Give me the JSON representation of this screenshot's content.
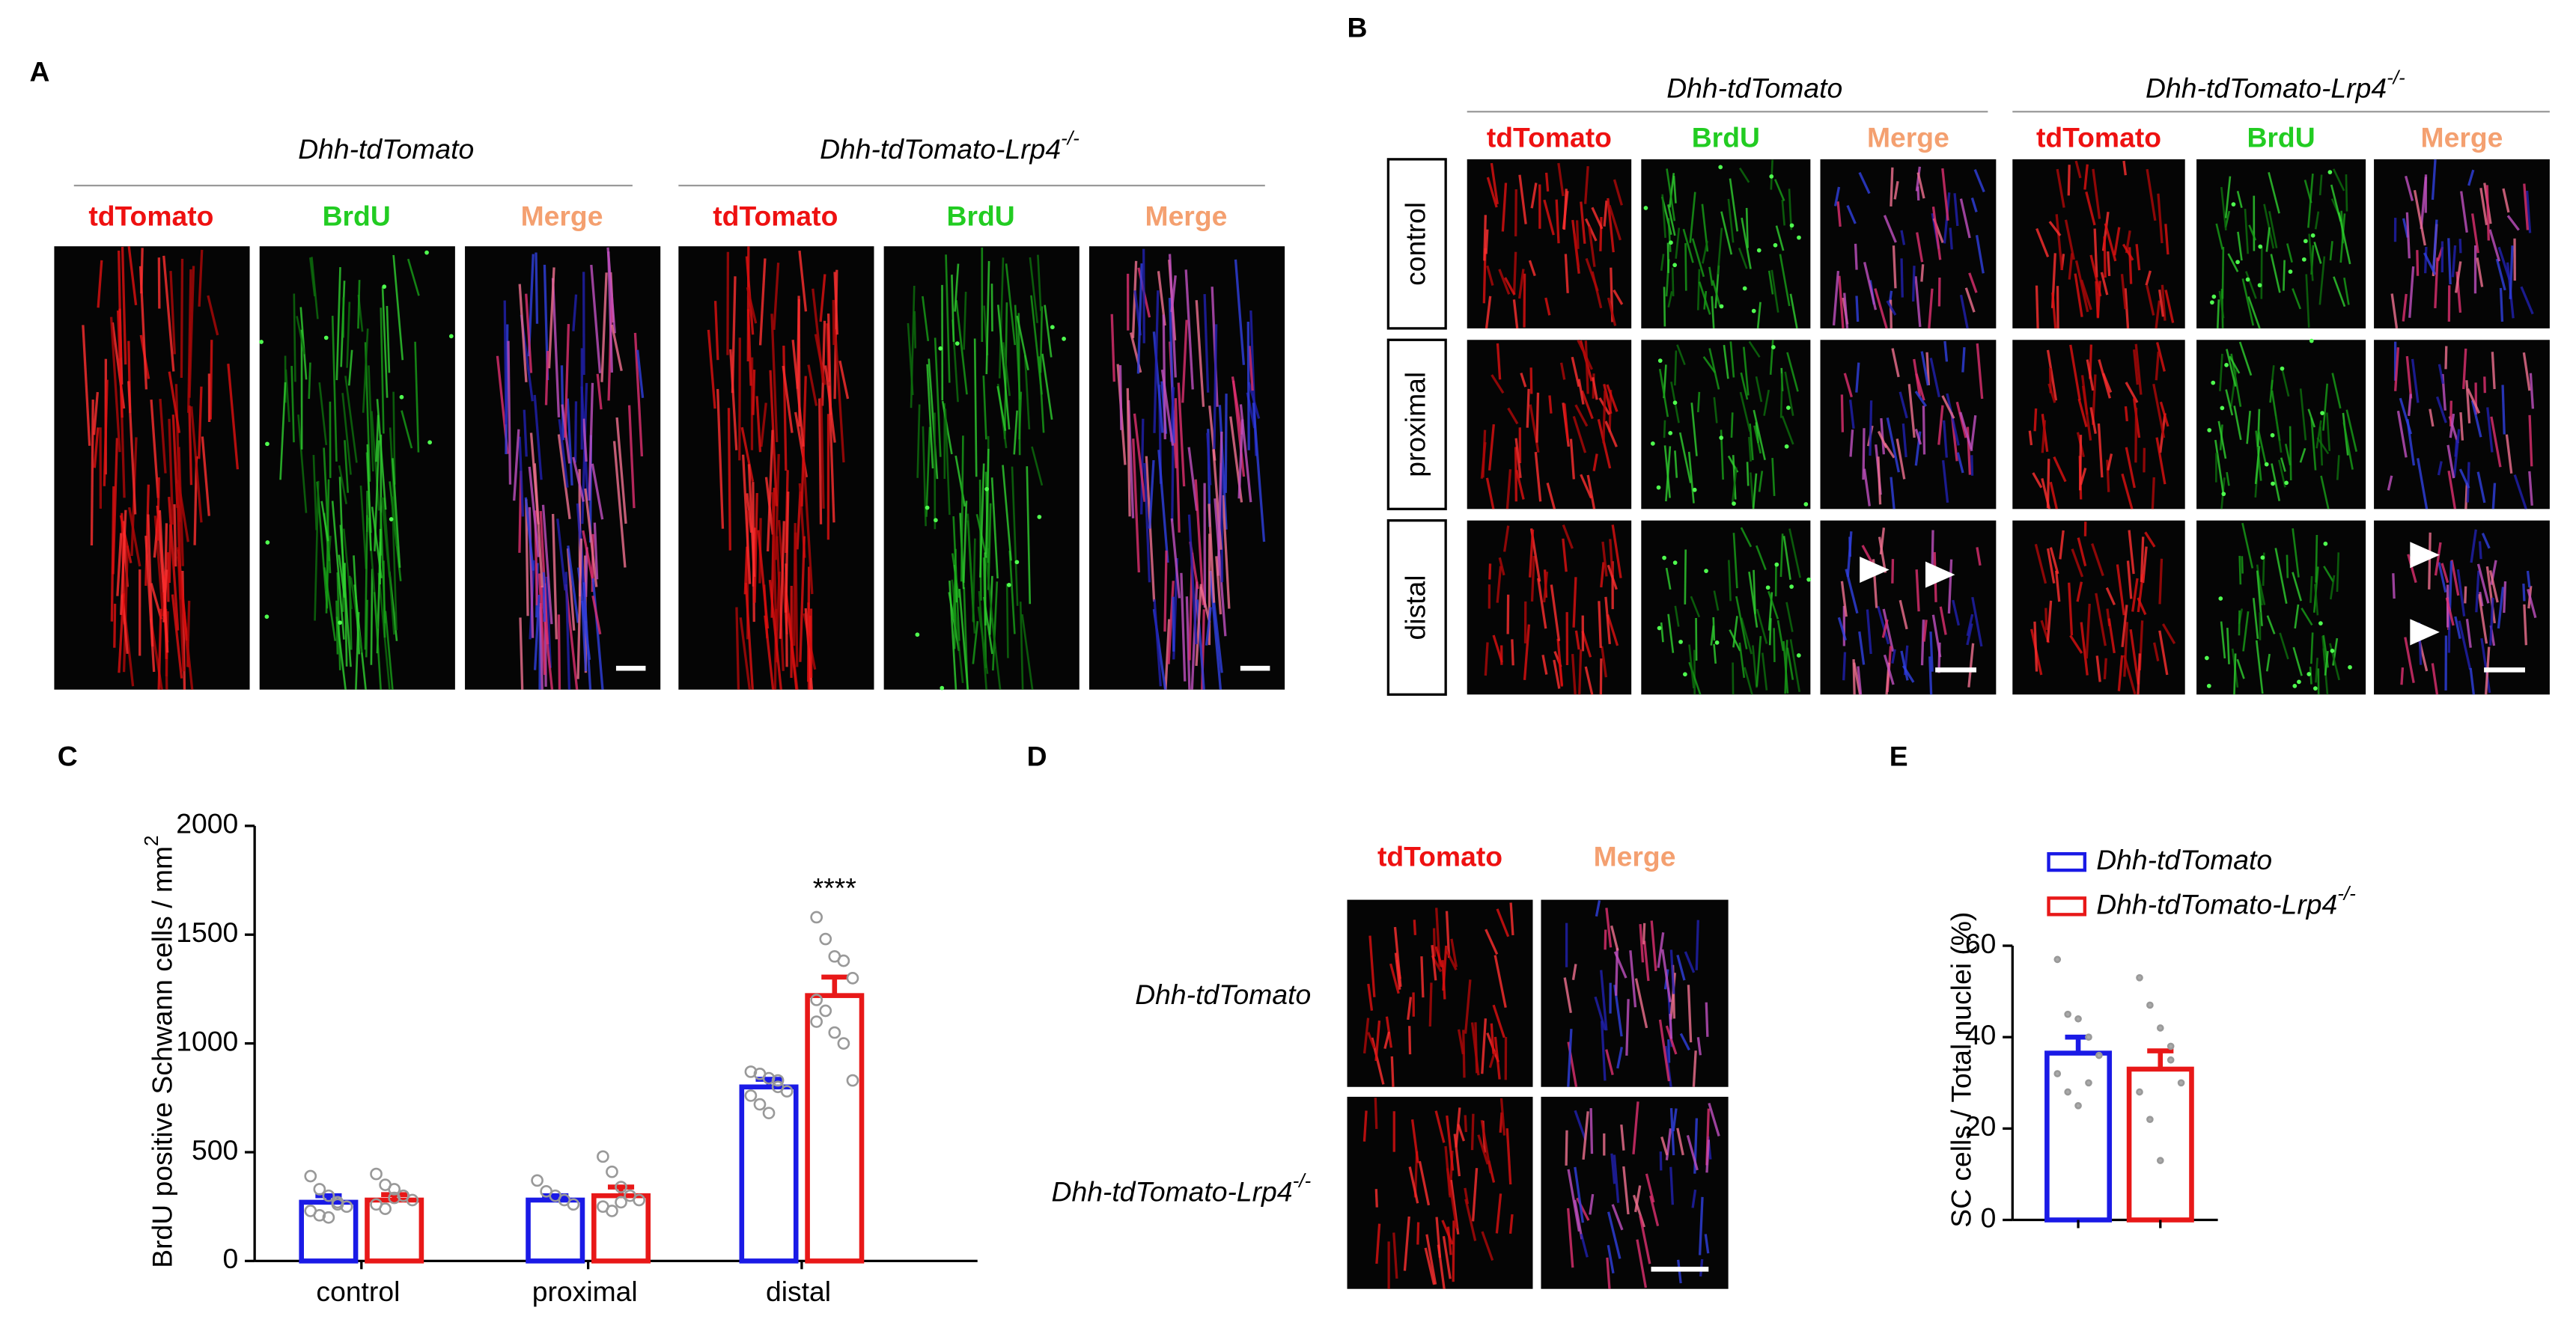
{
  "panel_a": {
    "label": "A",
    "groups": [
      {
        "text": "Dhh-tdTomato"
      },
      {
        "text": "Dhh-tdTomato-Lrp4",
        "sup": "-/-"
      }
    ],
    "channels": [
      "tdTomato",
      "BrdU",
      "Merge",
      "tdTomato",
      "BrdU",
      "Merge"
    ]
  },
  "panel_b": {
    "label": "B",
    "groups": [
      {
        "text": "Dhh-tdTomato"
      },
      {
        "text": "Dhh-tdTomato-Lrp4",
        "sup": "-/-"
      }
    ],
    "channels": [
      "tdTomato",
      "BrdU",
      "Merge",
      "tdTomato",
      "BrdU",
      "Merge"
    ],
    "rows": [
      "control",
      "proximal",
      "distal"
    ]
  },
  "panel_d": {
    "label": "D",
    "channels": [
      "tdTomato",
      "Merge"
    ],
    "rows": [
      {
        "text": "Dhh-tdTomato"
      },
      {
        "text": "Dhh-tdTomato-Lrp4",
        "sup": "-/-"
      }
    ]
  },
  "chart_data": [
    {
      "type": "bar",
      "panel": "C",
      "ylabel": {
        "text": "BrdU  positive Schwann cells / mm",
        "sup": "2"
      },
      "categories": [
        "control",
        "proximal",
        "distal"
      ],
      "ylim": [
        0,
        2000
      ],
      "yticks": [
        0,
        500,
        1000,
        1500,
        2000
      ],
      "annotation": "****",
      "series": [
        {
          "color": "#1a1ae6",
          "values": [
            270,
            280,
            800
          ],
          "errors": [
            30,
            20,
            35
          ],
          "points": [
            [
              390,
              330,
              300,
              270,
              250,
              230,
              210,
              200,
              260
            ],
            [
              370,
              320,
              300,
              280,
              260
            ],
            [
              870,
              860,
              840,
              830,
              780,
              760,
              720,
              680,
              800
            ]
          ]
        },
        {
          "color": "#e81818",
          "values": [
            280,
            300,
            1220
          ],
          "errors": [
            25,
            40,
            85
          ],
          "points": [
            [
              400,
              350,
              330,
              300,
              280,
              260,
              240,
              290
            ],
            [
              480,
              410,
              340,
              300,
              280,
              250,
              230,
              270
            ],
            [
              1580,
              1480,
              1400,
              1380,
              1300,
              1200,
              1150,
              1050,
              1000,
              830,
              1100
            ]
          ]
        }
      ]
    },
    {
      "type": "bar",
      "panel": "E",
      "ylabel": "SC cells  / Total nuclei (%)",
      "ylim": [
        0,
        60
      ],
      "yticks": [
        0,
        20,
        40,
        60
      ],
      "series": [
        {
          "name": "Dhh-tdTomato",
          "color": "#1a1ae6",
          "values": [
            36.5
          ],
          "errors": [
            3.5
          ],
          "points": [
            [
              57,
              45,
              44,
              40,
              36,
              32,
              28,
              25,
              30
            ]
          ]
        },
        {
          "name": "Dhh-tdTomato-Lrp4",
          "name_sup": "-/-",
          "color": "#e81818",
          "values": [
            33
          ],
          "errors": [
            4
          ],
          "points": [
            [
              53,
              47,
              42,
              38,
              30,
              28,
              22,
              13,
              35
            ]
          ]
        }
      ]
    }
  ]
}
